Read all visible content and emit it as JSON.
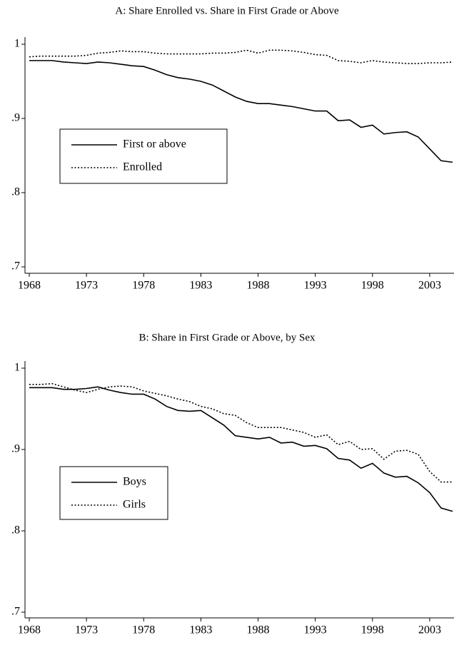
{
  "chart_data": [
    {
      "type": "line",
      "title": "A: Share Enrolled vs. Share in First Grade or Above",
      "x": [
        1968,
        1969,
        1970,
        1971,
        1972,
        1973,
        1974,
        1975,
        1976,
        1977,
        1978,
        1979,
        1980,
        1981,
        1982,
        1983,
        1984,
        1985,
        1986,
        1987,
        1988,
        1989,
        1990,
        1991,
        1992,
        1993,
        1994,
        1995,
        1996,
        1997,
        1998,
        1999,
        2000,
        2001,
        2002,
        2003,
        2004,
        2005
      ],
      "series": [
        {
          "name": "First or above",
          "color": "#000000",
          "dash": "solid",
          "values": [
            0.978,
            0.978,
            0.978,
            0.976,
            0.975,
            0.974,
            0.976,
            0.975,
            0.973,
            0.971,
            0.97,
            0.965,
            0.959,
            0.955,
            0.953,
            0.95,
            0.945,
            0.937,
            0.929,
            0.923,
            0.92,
            0.92,
            0.918,
            0.916,
            0.913,
            0.91,
            0.91,
            0.897,
            0.898,
            0.888,
            0.891,
            0.879,
            0.881,
            0.882,
            0.875,
            0.859,
            0.843,
            0.841
          ]
        },
        {
          "name": "Enrolled",
          "color": "#000000",
          "dash": "dotted",
          "values": [
            0.983,
            0.984,
            0.984,
            0.984,
            0.984,
            0.985,
            0.988,
            0.989,
            0.991,
            0.99,
            0.99,
            0.988,
            0.987,
            0.987,
            0.987,
            0.987,
            0.988,
            0.988,
            0.989,
            0.992,
            0.988,
            0.992,
            0.992,
            0.991,
            0.989,
            0.986,
            0.985,
            0.978,
            0.977,
            0.975,
            0.978,
            0.976,
            0.975,
            0.974,
            0.974,
            0.975,
            0.975,
            0.976
          ]
        }
      ],
      "xlim": [
        1968,
        2005
      ],
      "xticks": [
        1968,
        1973,
        1978,
        1983,
        1988,
        1993,
        1998,
        2003
      ],
      "ylim": [
        0.7,
        1
      ],
      "yticks": [
        {
          "value": 0.7,
          "label": ".7"
        },
        {
          "value": 0.8,
          "label": ".8"
        },
        {
          "value": 0.9,
          "label": ".9"
        },
        1
      ],
      "legend": "left"
    },
    {
      "type": "line",
      "title": "B: Share in First Grade or Above, by Sex",
      "x": [
        1968,
        1969,
        1970,
        1971,
        1972,
        1973,
        1974,
        1975,
        1976,
        1977,
        1978,
        1979,
        1980,
        1981,
        1982,
        1983,
        1984,
        1985,
        1986,
        1987,
        1988,
        1989,
        1990,
        1991,
        1992,
        1993,
        1994,
        1995,
        1996,
        1997,
        1998,
        1999,
        2000,
        2001,
        2002,
        2003,
        2004,
        2005
      ],
      "series": [
        {
          "name": "Boys",
          "color": "#000000",
          "dash": "solid",
          "values": [
            0.976,
            0.976,
            0.976,
            0.974,
            0.974,
            0.975,
            0.977,
            0.973,
            0.97,
            0.968,
            0.968,
            0.962,
            0.953,
            0.948,
            0.947,
            0.948,
            0.939,
            0.93,
            0.917,
            0.915,
            0.913,
            0.915,
            0.908,
            0.909,
            0.904,
            0.905,
            0.901,
            0.889,
            0.887,
            0.877,
            0.883,
            0.871,
            0.866,
            0.867,
            0.859,
            0.847,
            0.828,
            0.824
          ]
        },
        {
          "name": "Girls",
          "color": "#000000",
          "dash": "dotted",
          "values": [
            0.98,
            0.98,
            0.981,
            0.977,
            0.973,
            0.97,
            0.974,
            0.977,
            0.978,
            0.977,
            0.972,
            0.969,
            0.966,
            0.962,
            0.959,
            0.953,
            0.95,
            0.944,
            0.942,
            0.933,
            0.927,
            0.927,
            0.927,
            0.924,
            0.921,
            0.915,
            0.918,
            0.906,
            0.91,
            0.9,
            0.901,
            0.888,
            0.898,
            0.899,
            0.894,
            0.873,
            0.86,
            0.86
          ]
        }
      ],
      "xlim": [
        1968,
        2005
      ],
      "xticks": [
        1968,
        1973,
        1978,
        1983,
        1988,
        1993,
        1998,
        2003
      ],
      "ylim": [
        0.7,
        1
      ],
      "yticks": [
        {
          "value": 0.7,
          "label": ".7"
        },
        {
          "value": 0.8,
          "label": ".8"
        },
        {
          "value": 0.9,
          "label": ".9"
        },
        1
      ],
      "legend": "left"
    }
  ]
}
